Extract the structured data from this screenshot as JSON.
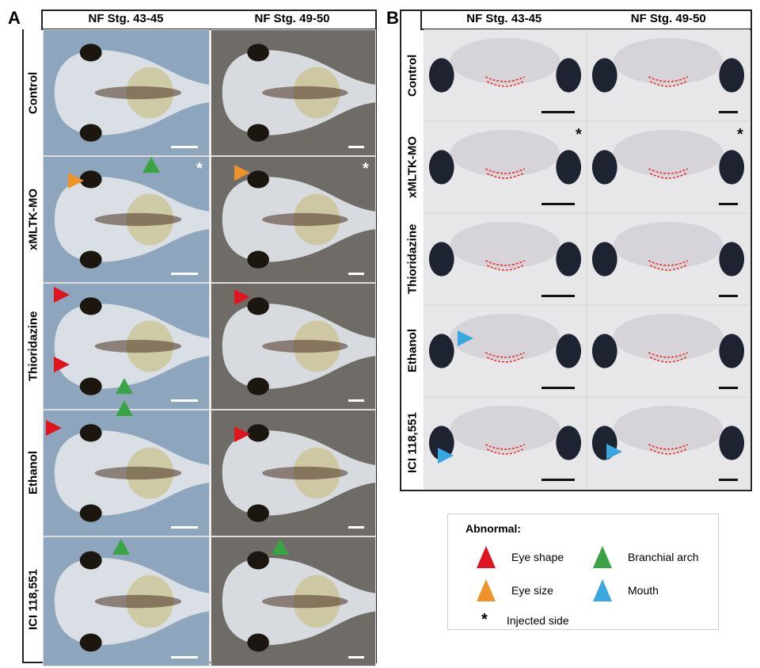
{
  "panels": {
    "a": {
      "label": "A",
      "stages": [
        "NF Stg. 43-45",
        "NF Stg. 49-50"
      ],
      "rows": [
        "Control",
        "xMLTK-MO",
        "Thioridazine",
        "Ethanol",
        "ICI 118,551"
      ]
    },
    "b": {
      "label": "B",
      "stages": [
        "NF Stg. 43-45",
        "NF Stg. 49-50"
      ],
      "rows": [
        "Control",
        "xMLTK-MO",
        "Thioridazine",
        "Ethanol",
        "ICI 118,551"
      ]
    }
  },
  "legend": {
    "title": "Abnormal:",
    "items": [
      {
        "label": "Eye shape",
        "color": "#e0141f"
      },
      {
        "label": "Branchial arch",
        "color": "#3aa344"
      },
      {
        "label": "Eye size",
        "color": "#f0922a"
      },
      {
        "label": "Mouth",
        "color": "#3aa8e0"
      },
      {
        "label": "Injected side",
        "symbol": "*"
      }
    ]
  },
  "asterisk": "*"
}
